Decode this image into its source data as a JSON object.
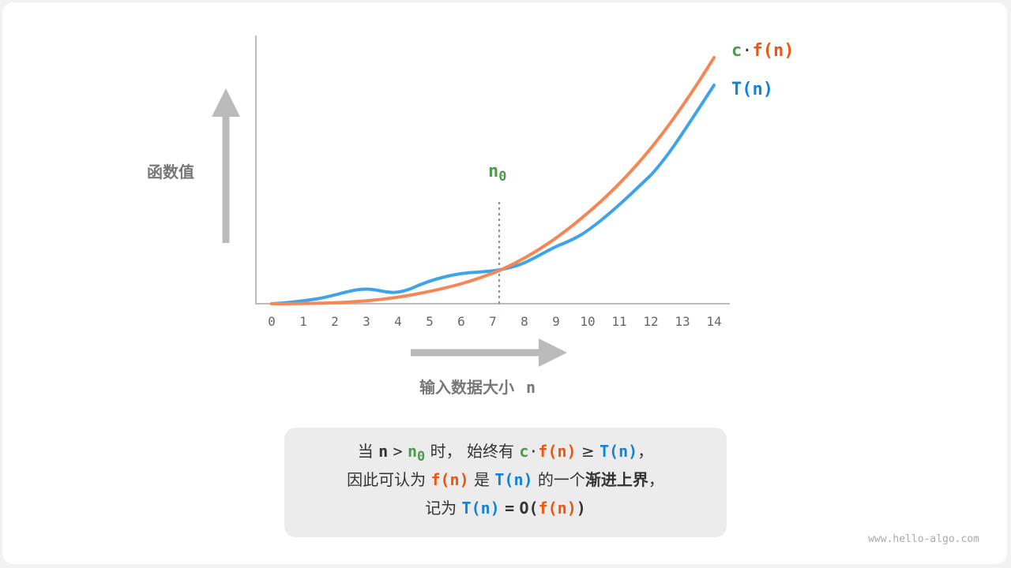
{
  "y_axis_label": "函数值",
  "x_axis_label": "输入数据大小",
  "x_axis_var": "n",
  "x_ticks": [
    "0",
    "1",
    "2",
    "3",
    "4",
    "5",
    "6",
    "7",
    "8",
    "9",
    "10",
    "11",
    "12",
    "13",
    "14"
  ],
  "n0_label": "n",
  "n0_sub": "0",
  "legend": {
    "c": "c",
    "dot": "·",
    "f": "f(n)",
    "t": "T(n)"
  },
  "colors": {
    "orange": "#f1540d",
    "blue": "#1482d6",
    "green": "#4e9a4e",
    "curve_orange": "#f78654",
    "curve_blue": "#3fa3ea",
    "axis": "#bbbbbb"
  },
  "caption": {
    "l1": {
      "a": "当",
      "n": "n",
      "gt": ">",
      "n0": "n",
      "sub": "0",
      "b": "时，",
      "c": "始终有",
      "cc": "c",
      "dot": "·",
      "f": "f(n)",
      "ge": "≥",
      "t": "T(n)",
      "comma": "，"
    },
    "l2": {
      "a": "因此可认为",
      "f": "f(n)",
      "b": "是",
      "t": "T(n)",
      "c": "的一个",
      "bold": "渐进上界",
      "comma": "，"
    },
    "l3": {
      "a": "记为",
      "t": "T(n)",
      "eq": "=",
      "o": "O(",
      "f": "f(n)",
      "close": ")"
    }
  },
  "watermark": "www.hello-algo.com"
}
